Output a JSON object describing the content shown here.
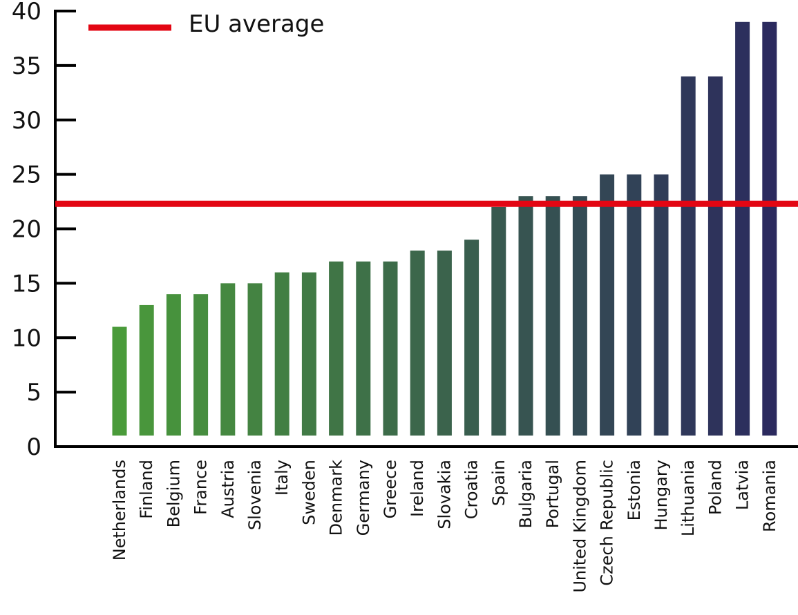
{
  "chart_data": {
    "type": "bar",
    "title": "",
    "xlabel": "",
    "ylabel": "",
    "ylim": [
      0,
      40
    ],
    "yticks": [
      0,
      5,
      10,
      15,
      20,
      25,
      30,
      35,
      40
    ],
    "categories": [
      "Netherlands",
      "Finland",
      "Belgium",
      "France",
      "Austria",
      "Slovenia",
      "Italy",
      "Sweden",
      "Denmark",
      "Germany",
      "Greece",
      "Ireland",
      "Slovakia",
      "Croatia",
      "Spain",
      "Bulgaria",
      "Portugal",
      "United Kingdom",
      "Czech Republic",
      "Estonia",
      "Hungary",
      "Lithuania",
      "Poland",
      "Latvia",
      "Romania"
    ],
    "values": [
      11,
      13,
      14,
      14,
      15,
      15,
      16,
      16,
      17,
      17,
      17,
      18,
      18,
      19,
      22,
      23,
      23,
      23,
      25,
      25,
      25,
      34,
      34,
      39,
      39
    ],
    "reference_line": {
      "label": "EU average",
      "value": 22.3,
      "color": "#e30613"
    },
    "bar_color_start": "#4a9b3a",
    "bar_color_end": "#2b2a5e",
    "legend": {
      "entries": [
        "EU average"
      ],
      "placement": "top-left"
    },
    "grid": false
  }
}
